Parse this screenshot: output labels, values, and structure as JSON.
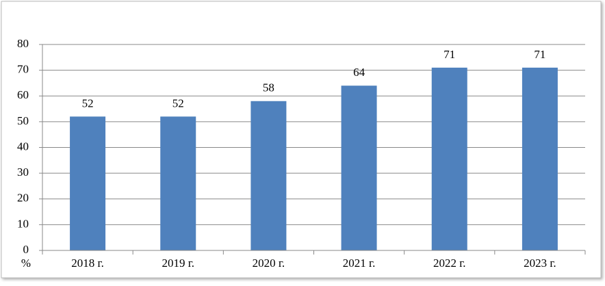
{
  "chart_data": {
    "type": "bar",
    "categories": [
      "2018 г.",
      "2019 г.",
      "2020 г.",
      "2021 г.",
      "2022 г.",
      "2023 г."
    ],
    "values": [
      52,
      52,
      58,
      64,
      71,
      71
    ],
    "color": "#4f81bd",
    "ylim": [
      0,
      80
    ],
    "yticks": [
      0,
      10,
      20,
      30,
      40,
      50,
      60,
      70,
      80
    ],
    "grid": true,
    "y_label": "%",
    "data_labels": true
  }
}
